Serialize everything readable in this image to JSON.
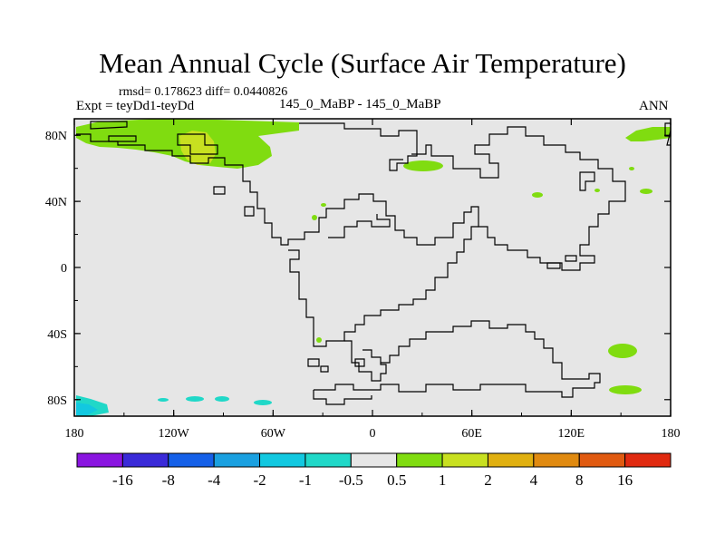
{
  "title": "Mean Annual Cycle (Surface Air Temperature)",
  "stats_line": "rmsd= 0.178623 diff= 0.0440826",
  "left_label": "Expt = teyDd1-teyDd",
  "center_label": "145_0_MaBP - 145_0_MaBP",
  "right_label": "ANN",
  "map": {
    "lon_range": [
      -180,
      180
    ],
    "lat_range": [
      -90,
      90
    ],
    "x_ticks": [
      {
        "lon": -180,
        "label": "180"
      },
      {
        "lon": -120,
        "label": "120W"
      },
      {
        "lon": -60,
        "label": "60W"
      },
      {
        "lon": 0,
        "label": "0"
      },
      {
        "lon": 60,
        "label": "60E"
      },
      {
        "lon": 120,
        "label": "120E"
      },
      {
        "lon": 180,
        "label": "180"
      }
    ],
    "y_ticks": [
      {
        "lat": 80,
        "label": "80N"
      },
      {
        "lat": 40,
        "label": "40N"
      },
      {
        "lat": 0,
        "label": "0"
      },
      {
        "lat": -40,
        "label": "40S"
      },
      {
        "lat": -80,
        "label": "80S"
      }
    ],
    "background_color": "#e6e6e6"
  },
  "colorbar": {
    "colors": [
      "#8a15e0",
      "#3a2ad8",
      "#1560e8",
      "#1aa0e0",
      "#12c8e0",
      "#20d8c8",
      "#e6e6e6",
      "#80dc10",
      "#c8e020",
      "#e0b010",
      "#e08a10",
      "#e05a10",
      "#e02a10"
    ],
    "labels": [
      "-16",
      "-8",
      "-4",
      "-2",
      "-1",
      "-0.5",
      "0.5",
      "1",
      "2",
      "4",
      "8",
      "16"
    ]
  }
}
